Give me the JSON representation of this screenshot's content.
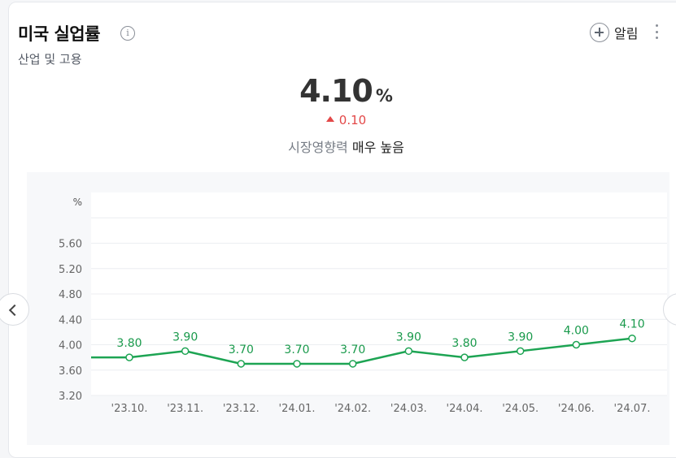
{
  "header": {
    "title": "미국 실업률",
    "info_icon": "info-icon",
    "subtitle": "산업 및 고용",
    "alarm_label": "알림",
    "alarm_icon": "plus-icon",
    "more_icon": "more-vertical-icon"
  },
  "summary": {
    "value": "4.10",
    "unit": "%",
    "change": "0.10",
    "change_direction": "up",
    "impact_label": "시장영향력",
    "impact_level": "매우 높음"
  },
  "colors": {
    "line": "#1da453",
    "up": "#e34848",
    "label": "#1a9a4c"
  },
  "chart_data": {
    "type": "line",
    "ylabel": "%",
    "ylim": [
      3.2,
      6.0
    ],
    "yticks": [
      "3.20",
      "3.60",
      "4.00",
      "4.40",
      "4.80",
      "5.20",
      "5.60"
    ],
    "categories": [
      "'23.10.",
      "'23.11.",
      "'23.12.",
      "'24.01.",
      "'24.02.",
      "'24.03.",
      "'24.04.",
      "'24.05.",
      "'24.06.",
      "'24.07."
    ],
    "values": [
      3.8,
      3.9,
      3.7,
      3.7,
      3.7,
      3.9,
      3.8,
      3.9,
      4.0,
      4.1
    ],
    "data_labels": [
      "3.80",
      "3.90",
      "3.70",
      "3.70",
      "3.70",
      "3.90",
      "3.80",
      "3.90",
      "4.00",
      "4.10"
    ],
    "leading_value": 3.8,
    "grid": true
  },
  "navigation": {
    "prev_icon": "chevron-left-icon",
    "next_icon": "chevron-right-icon"
  }
}
